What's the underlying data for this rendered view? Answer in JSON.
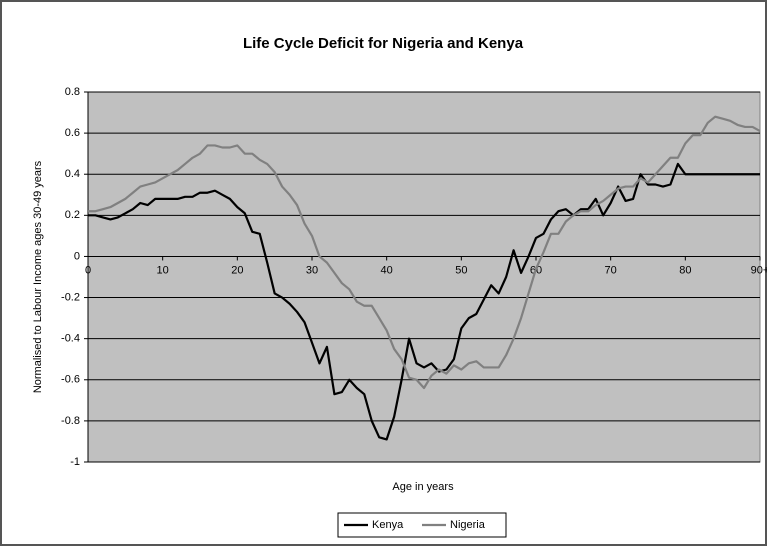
{
  "chart_data": {
    "type": "line",
    "title": "Life Cycle Deficit for Nigeria and Kenya",
    "x_label": "Age in years",
    "y_label": "Normalised to Labour Income ages 30-49 years",
    "x": [
      0,
      1,
      2,
      3,
      4,
      5,
      6,
      7,
      8,
      9,
      10,
      11,
      12,
      13,
      14,
      15,
      16,
      17,
      18,
      19,
      20,
      21,
      22,
      23,
      24,
      25,
      26,
      27,
      28,
      29,
      30,
      31,
      32,
      33,
      34,
      35,
      36,
      37,
      38,
      39,
      40,
      41,
      42,
      43,
      44,
      45,
      46,
      47,
      48,
      49,
      50,
      51,
      52,
      53,
      54,
      55,
      56,
      57,
      58,
      59,
      60,
      61,
      62,
      63,
      64,
      65,
      66,
      67,
      68,
      69,
      70,
      71,
      72,
      73,
      74,
      75,
      76,
      77,
      78,
      79,
      80,
      81,
      82,
      83,
      84,
      85,
      86,
      87,
      88,
      89,
      90
    ],
    "xlim": [
      0,
      90
    ],
    "xticks": [
      0,
      10,
      20,
      30,
      40,
      50,
      60,
      70,
      80,
      {
        "value": 90,
        "label": "90+"
      }
    ],
    "ylim": [
      -1,
      0.8
    ],
    "yticks": [
      -1,
      -0.8,
      -0.6,
      -0.4,
      -0.2,
      0,
      0.2,
      0.4,
      0.6,
      0.8
    ],
    "grid": true,
    "legend": "bottom",
    "series": [
      {
        "name": "Kenya",
        "color": "#000000",
        "values": [
          0.2,
          0.2,
          0.19,
          0.18,
          0.19,
          0.21,
          0.23,
          0.26,
          0.25,
          0.28,
          0.28,
          0.28,
          0.28,
          0.29,
          0.29,
          0.31,
          0.31,
          0.32,
          0.3,
          0.28,
          0.24,
          0.21,
          0.12,
          0.11,
          -0.03,
          -0.18,
          -0.2,
          -0.23,
          -0.27,
          -0.32,
          -0.42,
          -0.52,
          -0.44,
          -0.67,
          -0.66,
          -0.6,
          -0.64,
          -0.67,
          -0.8,
          -0.88,
          -0.89,
          -0.78,
          -0.6,
          -0.4,
          -0.52,
          -0.54,
          -0.52,
          -0.56,
          -0.55,
          -0.5,
          -0.35,
          -0.3,
          -0.28,
          -0.21,
          -0.14,
          -0.18,
          -0.1,
          0.03,
          -0.08,
          0.0,
          0.09,
          0.11,
          0.18,
          0.22,
          0.23,
          0.2,
          0.23,
          0.23,
          0.28,
          0.2,
          0.26,
          0.34,
          0.27,
          0.28,
          0.4,
          0.35,
          0.35,
          0.34,
          0.35,
          0.45,
          0.4,
          0.4,
          0.4,
          0.4,
          0.4,
          0.4,
          0.4,
          0.4,
          0.4,
          0.4,
          0.4
        ]
      },
      {
        "name": "Nigeria",
        "color": "#808080",
        "values": [
          0.22,
          0.22,
          0.23,
          0.24,
          0.26,
          0.28,
          0.31,
          0.34,
          0.35,
          0.36,
          0.38,
          0.4,
          0.42,
          0.45,
          0.48,
          0.5,
          0.54,
          0.54,
          0.53,
          0.53,
          0.54,
          0.5,
          0.5,
          0.47,
          0.45,
          0.41,
          0.34,
          0.3,
          0.25,
          0.16,
          0.1,
          0.0,
          -0.03,
          -0.08,
          -0.13,
          -0.16,
          -0.22,
          -0.24,
          -0.24,
          -0.3,
          -0.36,
          -0.45,
          -0.5,
          -0.59,
          -0.6,
          -0.64,
          -0.58,
          -0.55,
          -0.57,
          -0.53,
          -0.55,
          -0.52,
          -0.51,
          -0.54,
          -0.54,
          -0.54,
          -0.48,
          -0.4,
          -0.3,
          -0.18,
          -0.06,
          0.02,
          0.11,
          0.11,
          0.17,
          0.2,
          0.22,
          0.22,
          0.25,
          0.27,
          0.3,
          0.33,
          0.34,
          0.34,
          0.38,
          0.36,
          0.4,
          0.44,
          0.48,
          0.48,
          0.55,
          0.59,
          0.59,
          0.65,
          0.68,
          0.67,
          0.66,
          0.64,
          0.63,
          0.63,
          0.61
        ]
      }
    ]
  }
}
